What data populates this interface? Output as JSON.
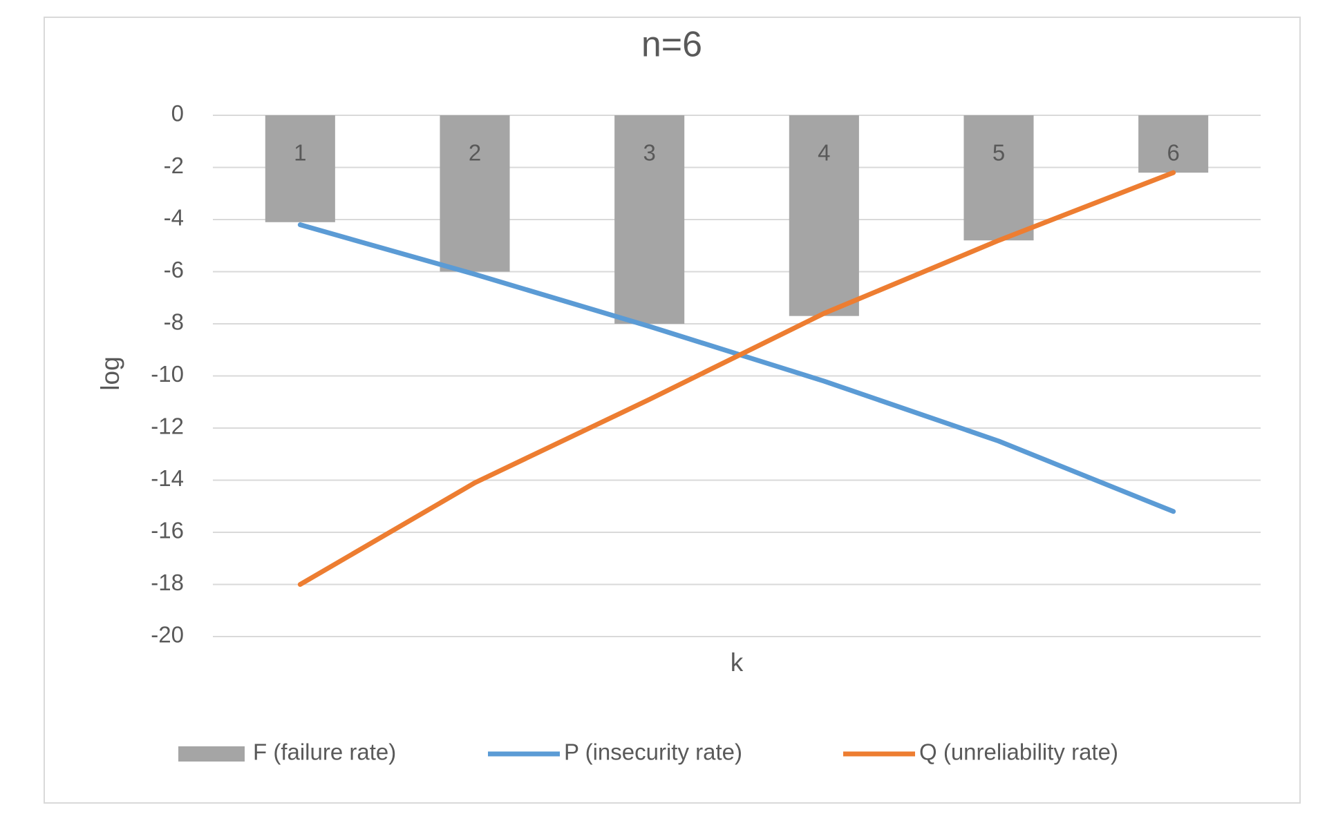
{
  "chart_data": {
    "type": "bar_line",
    "title": "n=6",
    "x_label": "k",
    "y_label": "log",
    "categories": [
      "1",
      "2",
      "3",
      "4",
      "5",
      "6"
    ],
    "series": [
      {
        "name": "F (failure rate)",
        "type": "bar",
        "color": "#a5a5a5",
        "values": [
          -4.1,
          -6.0,
          -8.0,
          -7.7,
          -4.8,
          -2.2
        ]
      },
      {
        "name": "P (insecurity rate)",
        "type": "line",
        "color": "#5b9bd5",
        "values": [
          -4.2,
          -6.1,
          -8.1,
          -10.2,
          -12.5,
          -15.2
        ]
      },
      {
        "name": "Q (unreliability rate)",
        "type": "line",
        "color": "#ed7d31",
        "values": [
          -18.0,
          -14.1,
          -10.9,
          -7.6,
          -4.8,
          -2.2
        ]
      }
    ],
    "ylim": [
      -20,
      0
    ],
    "yticks": [
      0,
      -2,
      -4,
      -6,
      -8,
      -10,
      -12,
      -14,
      -16,
      -18,
      -20
    ],
    "grid": true
  }
}
